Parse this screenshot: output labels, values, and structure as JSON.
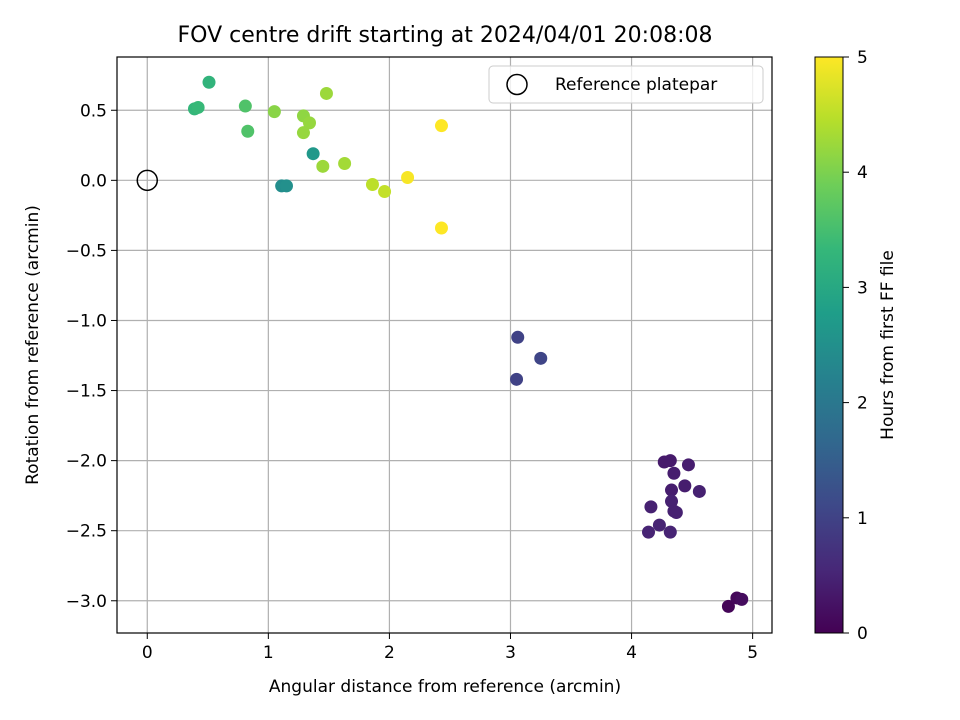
{
  "chart_data": {
    "type": "scatter",
    "title": "FOV centre drift starting at 2024/04/01 20:08:08",
    "xlabel": "Angular distance from reference (arcmin)",
    "ylabel": "Rotation from reference (arcmin)",
    "xlim": [
      -0.25,
      5.16
    ],
    "ylim": [
      -3.23,
      0.88
    ],
    "xticks": [
      0,
      1,
      2,
      3,
      4,
      5
    ],
    "xtick_labels": [
      "0",
      "1",
      "2",
      "3",
      "4",
      "5"
    ],
    "yticks": [
      0.5,
      0.0,
      -0.5,
      -1.0,
      -1.5,
      -2.0,
      -2.5,
      -3.0
    ],
    "ytick_labels": [
      "0.5",
      "0.0",
      "−0.5",
      "−1.0",
      "−1.5",
      "−2.0",
      "−2.5",
      "−3.0"
    ],
    "grid": true,
    "colormap": "viridis",
    "colorbar": {
      "label": "Hours from first FF file",
      "range": [
        0,
        5
      ],
      "ticks": [
        0,
        1,
        2,
        3,
        4,
        5
      ],
      "tick_labels": [
        "0",
        "1",
        "2",
        "3",
        "4",
        "5"
      ],
      "colors": [
        "#440154",
        "#472878",
        "#3e4989",
        "#31688e",
        "#26828e",
        "#1f9e89",
        "#35b779",
        "#6ece58",
        "#b5de2b",
        "#fde725"
      ]
    },
    "legend": {
      "placement": "top-right",
      "entries": [
        {
          "label": "Reference platepar",
          "marker": "open-circle",
          "color": "#000000"
        }
      ]
    },
    "reference_point": {
      "x": 0,
      "y": 0
    },
    "points": [
      {
        "x": 4.8,
        "y": -3.04,
        "c": 0.05
      },
      {
        "x": 4.87,
        "y": -2.98,
        "c": 0.1
      },
      {
        "x": 4.91,
        "y": -2.99,
        "c": 0.15
      },
      {
        "x": 4.27,
        "y": -2.01,
        "c": 0.35
      },
      {
        "x": 4.32,
        "y": -2.0,
        "c": 0.35
      },
      {
        "x": 4.47,
        "y": -2.03,
        "c": 0.4
      },
      {
        "x": 4.35,
        "y": -2.09,
        "c": 0.4
      },
      {
        "x": 4.44,
        "y": -2.18,
        "c": 0.4
      },
      {
        "x": 4.33,
        "y": -2.21,
        "c": 0.4
      },
      {
        "x": 4.56,
        "y": -2.22,
        "c": 0.45
      },
      {
        "x": 4.33,
        "y": -2.29,
        "c": 0.45
      },
      {
        "x": 4.16,
        "y": -2.33,
        "c": 0.45
      },
      {
        "x": 4.35,
        "y": -2.36,
        "c": 0.45
      },
      {
        "x": 4.37,
        "y": -2.37,
        "c": 0.45
      },
      {
        "x": 4.23,
        "y": -2.46,
        "c": 0.5
      },
      {
        "x": 4.14,
        "y": -2.51,
        "c": 0.5
      },
      {
        "x": 4.32,
        "y": -2.51,
        "c": 0.5
      },
      {
        "x": 3.06,
        "y": -1.12,
        "c": 1.0
      },
      {
        "x": 3.25,
        "y": -1.27,
        "c": 1.05
      },
      {
        "x": 3.05,
        "y": -1.42,
        "c": 1.0
      },
      {
        "x": 1.37,
        "y": 0.19,
        "c": 2.65
      },
      {
        "x": 1.11,
        "y": -0.04,
        "c": 2.45
      },
      {
        "x": 1.15,
        "y": -0.04,
        "c": 2.5
      },
      {
        "x": 0.51,
        "y": 0.7,
        "c": 3.25
      },
      {
        "x": 0.39,
        "y": 0.51,
        "c": 3.3
      },
      {
        "x": 0.42,
        "y": 0.52,
        "c": 3.35
      },
      {
        "x": 0.81,
        "y": 0.53,
        "c": 3.6
      },
      {
        "x": 0.83,
        "y": 0.35,
        "c": 3.6
      },
      {
        "x": 1.05,
        "y": 0.49,
        "c": 4.1
      },
      {
        "x": 1.29,
        "y": 0.46,
        "c": 4.15
      },
      {
        "x": 1.34,
        "y": 0.41,
        "c": 4.2
      },
      {
        "x": 1.29,
        "y": 0.34,
        "c": 4.2
      },
      {
        "x": 1.48,
        "y": 0.62,
        "c": 4.25
      },
      {
        "x": 1.45,
        "y": 0.1,
        "c": 4.25
      },
      {
        "x": 1.63,
        "y": 0.12,
        "c": 4.3
      },
      {
        "x": 1.86,
        "y": -0.03,
        "c": 4.5
      },
      {
        "x": 1.96,
        "y": -0.08,
        "c": 4.55
      },
      {
        "x": 2.15,
        "y": 0.02,
        "c": 4.95
      },
      {
        "x": 2.43,
        "y": 0.39,
        "c": 5.0
      },
      {
        "x": 2.43,
        "y": -0.34,
        "c": 5.0
      }
    ]
  }
}
